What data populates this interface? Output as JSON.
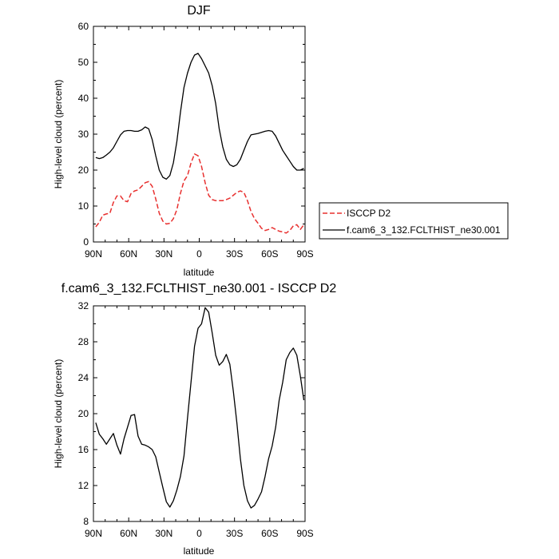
{
  "chart_data": [
    {
      "type": "line",
      "title": "DJF",
      "xlabel": "latitude",
      "ylabel": "High-level cloud (percent)",
      "xlim": [
        90,
        -90
      ],
      "ylim": [
        0,
        60
      ],
      "x_ticks": [
        90,
        60,
        30,
        0,
        -30,
        -60,
        -90
      ],
      "x_tick_labels": [
        "90N",
        "60N",
        "30N",
        "0",
        "30S",
        "60S",
        "90S"
      ],
      "y_ticks": [
        0,
        10,
        20,
        30,
        40,
        50,
        60
      ],
      "y_tick_labels": [
        "0",
        "10",
        "20",
        "30",
        "40",
        "50",
        "60"
      ],
      "legend_position": "right",
      "series": [
        {
          "name": "ISCCP D2",
          "color": "#e8302f",
          "dash": "dashed",
          "x": [
            88,
            85,
            82,
            79,
            76,
            73,
            70,
            67,
            64,
            61,
            58,
            55,
            52,
            49,
            46,
            43,
            40,
            37,
            34,
            31,
            28,
            25,
            22,
            19,
            16,
            13,
            10,
            7,
            4,
            1,
            -2,
            -5,
            -8,
            -11,
            -14,
            -17,
            -20,
            -23,
            -26,
            -29,
            -32,
            -35,
            -38,
            -41,
            -44,
            -47,
            -50,
            -53,
            -56,
            -59,
            -62,
            -65,
            -68,
            -71,
            -74,
            -77,
            -80,
            -83,
            -86,
            -89
          ],
          "values": [
            4.2,
            5.5,
            7.5,
            7.8,
            8,
            11,
            12.8,
            12.8,
            11.5,
            11.2,
            13.5,
            14.2,
            14.5,
            15.5,
            16.5,
            16.8,
            15.5,
            12,
            8,
            5.8,
            5,
            5.2,
            6.5,
            9,
            13.5,
            17,
            18.5,
            22,
            24.5,
            24,
            21,
            16.5,
            13,
            11.8,
            11.5,
            11.5,
            11.5,
            11.8,
            12.2,
            13,
            13.8,
            14.2,
            13.8,
            11.5,
            8.5,
            6.5,
            5.2,
            3.8,
            3.2,
            3.5,
            4,
            3.5,
            3,
            2.8,
            2.5,
            3.2,
            4.5,
            4.8,
            3.5,
            4.8
          ]
        },
        {
          "name": "f.cam6_3_132.FCLTHIST_ne30.001",
          "color": "#000000",
          "dash": "solid",
          "x": [
            88,
            85,
            82,
            79,
            76,
            73,
            70,
            67,
            64,
            61,
            58,
            55,
            52,
            49,
            46,
            43,
            40,
            37,
            34,
            31,
            28,
            25,
            22,
            19,
            16,
            13,
            10,
            7,
            4,
            1,
            -2,
            -5,
            -8,
            -11,
            -14,
            -17,
            -20,
            -23,
            -26,
            -29,
            -32,
            -35,
            -38,
            -41,
            -44,
            -47,
            -50,
            -53,
            -56,
            -59,
            -62,
            -65,
            -68,
            -71,
            -74,
            -77,
            -80,
            -83,
            -86,
            -89
          ],
          "values": [
            23.5,
            23.2,
            23.5,
            24.2,
            25,
            26.2,
            28,
            29.8,
            30.8,
            31,
            31,
            30.8,
            30.8,
            31.2,
            32,
            31.5,
            28.5,
            24,
            20,
            18,
            17.5,
            18.5,
            22,
            28,
            36,
            43,
            47,
            50,
            52,
            52.5,
            51,
            49,
            47,
            43.5,
            38.5,
            31.5,
            26.5,
            23,
            21.5,
            21,
            21.5,
            23,
            25.5,
            28,
            29.8,
            30,
            30.2,
            30.5,
            30.8,
            31,
            30.8,
            29.5,
            27.5,
            25.5,
            24,
            22.5,
            21,
            20,
            20,
            20.5
          ]
        }
      ]
    },
    {
      "type": "line",
      "title": "f.cam6_3_132.FCLTHIST_ne30.001 - ISCCP D2",
      "xlabel": "latitude",
      "ylabel": "High-level cloud (percent)",
      "xlim": [
        90,
        -90
      ],
      "ylim": [
        8,
        32
      ],
      "x_ticks": [
        90,
        60,
        30,
        0,
        -30,
        -60,
        -90
      ],
      "x_tick_labels": [
        "90N",
        "60N",
        "30N",
        "0",
        "30S",
        "60S",
        "90S"
      ],
      "y_ticks": [
        8,
        12,
        16,
        20,
        24,
        28,
        32
      ],
      "y_tick_labels": [
        "8",
        "12",
        "16",
        "20",
        "24",
        "28",
        "32"
      ],
      "series": [
        {
          "color": "#000000",
          "dash": "solid",
          "x": [
            88,
            85,
            82,
            79,
            76,
            73,
            70,
            67,
            64,
            61,
            58,
            55,
            52,
            49,
            46,
            43,
            40,
            37,
            34,
            31,
            28,
            25,
            22,
            19,
            16,
            13,
            10,
            7,
            4,
            1,
            -2,
            -5,
            -8,
            -11,
            -14,
            -17,
            -20,
            -23,
            -26,
            -29,
            -32,
            -35,
            -38,
            -41,
            -44,
            -47,
            -50,
            -53,
            -56,
            -59,
            -62,
            -65,
            -68,
            -71,
            -74,
            -77,
            -80,
            -83,
            -86,
            -89
          ],
          "values": [
            19,
            17.7,
            17.2,
            16.6,
            17.2,
            17.8,
            16.5,
            15.5,
            17.2,
            18.5,
            19.8,
            19.9,
            17.5,
            16.6,
            16.5,
            16.3,
            16,
            15.2,
            13.5,
            11.8,
            10.2,
            9.6,
            10.3,
            11.5,
            13,
            15.3,
            19.5,
            23.5,
            27.5,
            29.5,
            30,
            31.8,
            31.3,
            29,
            26.5,
            25.4,
            25.8,
            26.6,
            25.5,
            22.5,
            19,
            15,
            12,
            10.3,
            9.5,
            9.8,
            10.5,
            11.3,
            13,
            15,
            16.4,
            18.5,
            21.5,
            23.5,
            26,
            26.8,
            27.3,
            26.5,
            24.2,
            21.5
          ]
        }
      ]
    }
  ]
}
